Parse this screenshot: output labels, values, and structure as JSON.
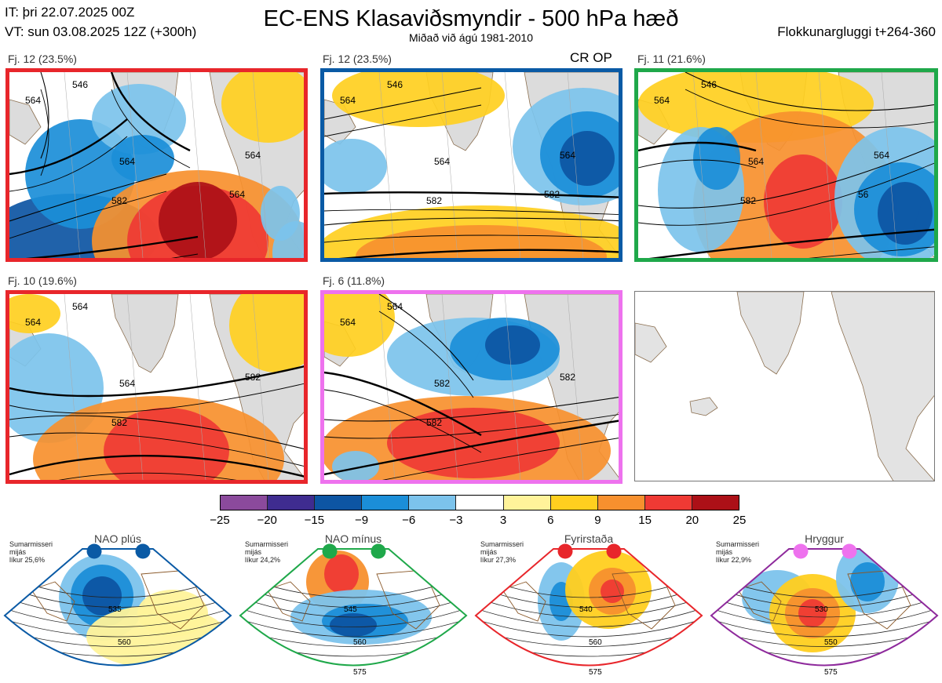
{
  "header": {
    "issue_time": "IT: þri 22.07.2025 00Z",
    "valid_time": "VT: sun 03.08.2025 12Z  (+300h)",
    "title": "EC-ENS Klasaviðsmyndir - 500 hPa hæð",
    "subtitle": "Miðað við ágú 1981-2010",
    "cluster_window": "Flokkunargluggi t+264-360"
  },
  "panels": [
    {
      "label": "Fj. 12 (23.5%)",
      "border_color": "#e8262b",
      "contours": [
        "564",
        "546",
        "564",
        "564",
        "582",
        "564"
      ]
    },
    {
      "label": "Fj. 12 (23.5%)",
      "border_color": "#0a5aa5",
      "contours": [
        "564",
        "546",
        "564",
        "564",
        "582",
        "582"
      ],
      "badge": "CR OP"
    },
    {
      "label": "Fj. 11 (21.6%)",
      "border_color": "#1fa84a",
      "contours": [
        "564",
        "546",
        "564",
        "564",
        "582",
        "56"
      ]
    },
    {
      "label": "Fj. 10 (19.6%)",
      "border_color": "#e8262b",
      "contours": [
        "564",
        "564",
        "564",
        "582",
        "582"
      ]
    },
    {
      "label": "Fj. 6 (11.8%)",
      "border_color": "#ee72ee",
      "contours": [
        "564",
        "564",
        "582",
        "582",
        "582"
      ]
    }
  ],
  "colorbar": {
    "ticks": [
      "−25",
      "−20",
      "−15",
      "−9",
      "−6",
      "−3",
      "3",
      "6",
      "9",
      "15",
      "20",
      "25"
    ],
    "colors": [
      "#8b4a9c",
      "#3f2c90",
      "#0d55a3",
      "#1b8ed8",
      "#7cc3ec",
      "#ffffff",
      "#fff39a",
      "#ffcf1f",
      "#f7902e",
      "#ef3a34",
      "#ac1017"
    ]
  },
  "regimes": [
    {
      "title": "NAO plús",
      "note": [
        "Sumarmisseri",
        "mijás",
        "líkur 25,6%"
      ],
      "border_color": "#0a5aa5",
      "dot_color": "#0a5aa5",
      "contours": [
        "535",
        "560"
      ]
    },
    {
      "title": "NAO mínus",
      "note": [
        "Sumarmisseri",
        "mijás",
        "líkur 24,2%"
      ],
      "border_color": "#1fa84a",
      "dot_color": "#1fa84a",
      "contours": [
        "545",
        "560",
        "575"
      ]
    },
    {
      "title": "Fyrirstaða",
      "note": [
        "Sumarmisseri",
        "mijás",
        "líkur 27,3%"
      ],
      "border_color": "#e8262b",
      "dot_color": "#e8262b",
      "contours": [
        "540",
        "560",
        "575"
      ]
    },
    {
      "title": "Hryggur",
      "note": [
        "Sumarmisseri",
        "mijás",
        "líkur 22,9%"
      ],
      "border_color": "#8e2a9c",
      "dot_color": "#ee72ee",
      "contours": [
        "530",
        "550",
        "575"
      ]
    }
  ]
}
